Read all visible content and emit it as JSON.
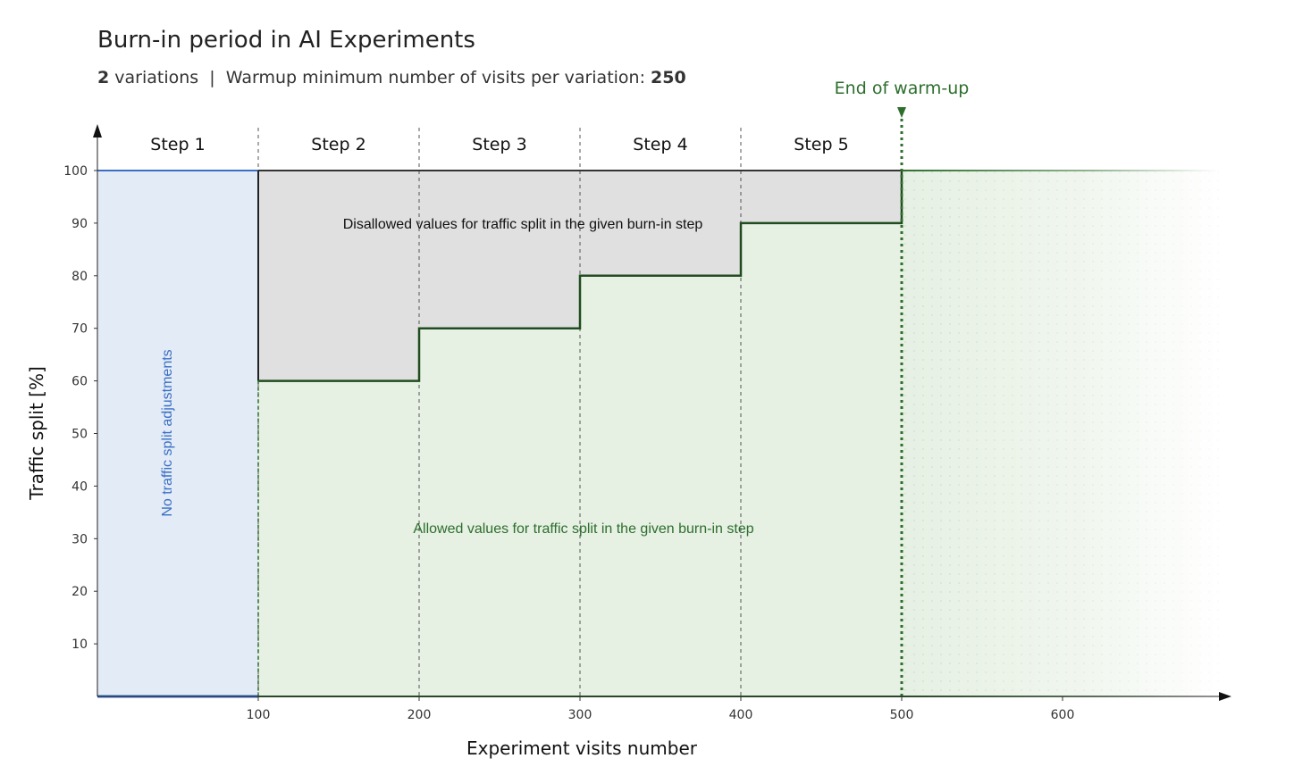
{
  "title": "Burn-in period in AI Experiments",
  "subtitle": {
    "variations_count": "2",
    "variations_text": "variations",
    "separator": "|",
    "warmup_text": "Warmup minimum number of visits per variation:",
    "warmup_value": "250"
  },
  "colors": {
    "disallowed_fill": "#e0e0e0",
    "allowed_fill": "#e6f0e3",
    "no_adjust_fill": "#e2ebf6",
    "boundary_line": "#1f4d1f",
    "blue_line": "#3a6fc4",
    "warmup_green": "#2d6e2d",
    "dots": "#b9d3b1"
  },
  "chart_data": {
    "type": "area",
    "title": "Burn-in period in AI Experiments",
    "xlabel": "Experiment visits number",
    "ylabel": "Traffic split [%]",
    "xlim": [
      0,
      700
    ],
    "ylim": [
      0,
      100
    ],
    "xticks": [
      100,
      200,
      300,
      400,
      500,
      600
    ],
    "yticks": [
      10,
      20,
      30,
      40,
      50,
      60,
      70,
      80,
      90,
      100
    ],
    "steps": [
      {
        "label": "Step 1",
        "x_start": 0,
        "x_end": 100,
        "max_split": 100
      },
      {
        "label": "Step 2",
        "x_start": 100,
        "x_end": 200,
        "max_split": 60
      },
      {
        "label": "Step 3",
        "x_start": 200,
        "x_end": 300,
        "max_split": 70
      },
      {
        "label": "Step 4",
        "x_start": 300,
        "x_end": 400,
        "max_split": 80
      },
      {
        "label": "Step 5",
        "x_start": 400,
        "x_end": 500,
        "max_split": 90
      }
    ],
    "warmup_end_x": 500,
    "warmup_end_label": "End of warm-up",
    "annotations": {
      "disallowed": "Disallowed values for traffic split in the given burn-in step",
      "allowed": "Allowed values for traffic split in the given burn-in step",
      "no_adjustment": "No traffic split adjustments"
    }
  }
}
